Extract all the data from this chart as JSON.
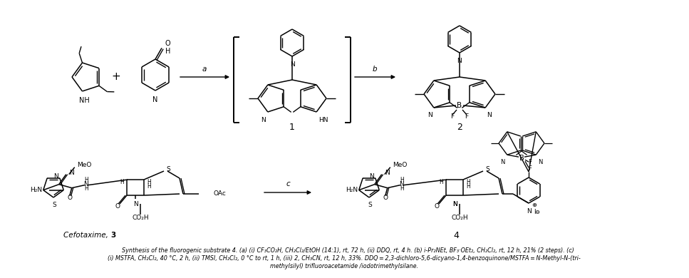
{
  "figsize": [
    9.67,
    3.9
  ],
  "dpi": 100,
  "bg": "#ffffff",
  "caption_line1": "    Synthesis of the fluorogenic substrate 4. (a) (i) CF₃CO₂H, CH₂Cl₂/EtOH (14:1), rt, 72 h, (ii) DDQ, rt, 4 h. (b) i-Pr₂NEt, BF₃·OEt₂, CH₂Cl₂, rt, 12 h, 21% (2 steps). (c)",
  "caption_line2": "(i) MSTFA, CH₂Cl₂, 40 °C, 2 h, (ii) TMSI, CH₂Cl₂, 0 °C to rt, 1 h, (iii) 2, CH₃CN, rt, 12 h, 33%. DDQ = 2,3-dichloro-5,6-dicyano-1,4-benzoquinone/MSTFA = N-Methyl-N-(tri-",
  "caption_line3": "methylsilyl) trifluoroacetamide /iodotrimethylsilane.",
  "label1": "1",
  "label2": "2",
  "label3": "Cefotaxime, ",
  "label3b": "3",
  "label4": "4",
  "step_a": "a",
  "step_b": "b",
  "step_c": "c"
}
